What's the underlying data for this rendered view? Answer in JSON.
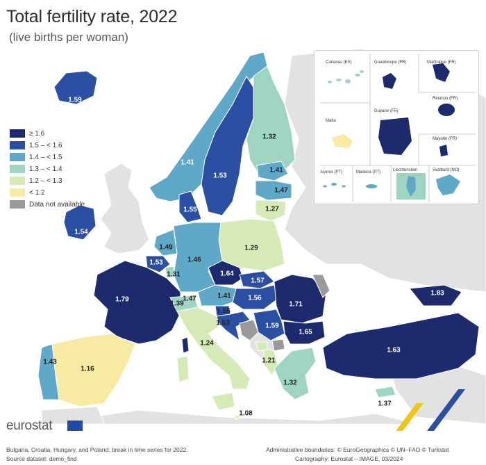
{
  "header": {
    "title": "Total fertility rate, 2022",
    "subtitle": "(live births per woman)"
  },
  "legend": {
    "items": [
      {
        "label": "≥ 1.6",
        "color": "#1d2a6e"
      },
      {
        "label": "1.5 – < 1.6",
        "color": "#2b4fa3"
      },
      {
        "label": "1.4 – < 1.5",
        "color": "#5fa8c7"
      },
      {
        "label": "1.3 – < 1.4",
        "color": "#9fd3c2"
      },
      {
        "label": "1.2 – < 1.3",
        "color": "#d6eab8"
      },
      {
        "label": "< 1.2",
        "color": "#f7eba3"
      },
      {
        "label": "Data not available",
        "color": "#9a9a9a"
      }
    ]
  },
  "countries": [
    {
      "name": "Iceland",
      "value": "1.59"
    },
    {
      "name": "Ireland",
      "value": "1.54"
    },
    {
      "name": "Norway",
      "value": "1.41"
    },
    {
      "name": "Sweden",
      "value": "1.53"
    },
    {
      "name": "Finland",
      "value": "1.32"
    },
    {
      "name": "Estonia",
      "value": "1.41"
    },
    {
      "name": "Latvia",
      "value": "1.47"
    },
    {
      "name": "Lithuania",
      "value": "1.27"
    },
    {
      "name": "Denmark",
      "value": "1.55"
    },
    {
      "name": "Netherlands",
      "value": "1.49"
    },
    {
      "name": "Belgium",
      "value": "1.53"
    },
    {
      "name": "Luxembourg",
      "value": "1.31"
    },
    {
      "name": "Germany",
      "value": "1.46"
    },
    {
      "name": "Poland",
      "value": "1.29"
    },
    {
      "name": "Czechia",
      "value": "1.64"
    },
    {
      "name": "Slovakia",
      "value": "1.57"
    },
    {
      "name": "Hungary",
      "value": "1.56"
    },
    {
      "name": "Austria",
      "value": "1.41"
    },
    {
      "name": "Switzerland",
      "value": "1.39"
    },
    {
      "name": "Liechtenstein",
      "value": "1.47"
    },
    {
      "name": "France",
      "value": "1.79"
    },
    {
      "name": "Slovenia",
      "value": "1.55"
    },
    {
      "name": "Croatia",
      "value": "1.53"
    },
    {
      "name": "Serbia",
      "value": "1.59"
    },
    {
      "name": "Romania",
      "value": "1.71"
    },
    {
      "name": "Bulgaria",
      "value": "1.65"
    },
    {
      "name": "Georgia",
      "value": "1.83"
    },
    {
      "name": "Turkey",
      "value": "1.63"
    },
    {
      "name": "Italy",
      "value": "1.24"
    },
    {
      "name": "Albania",
      "value": "1.21"
    },
    {
      "name": "Greece",
      "value": "1.32"
    },
    {
      "name": "Cyprus",
      "value": "1.37"
    },
    {
      "name": "Malta",
      "value": "1.08"
    },
    {
      "name": "Portugal",
      "value": "1.43"
    },
    {
      "name": "Spain",
      "value": "1.16"
    }
  ],
  "insets": {
    "canarias": "Canarias (ES)",
    "guadeloupe": "Guadeloupe (FR)",
    "martinique": "Martinique (FR)",
    "reunion": "Réunion (FR)",
    "malta": "Malta",
    "guyane": "Guyane (FR)",
    "mayotte": "Mayotte (FR)",
    "acores": "Açores (PT)",
    "madeira": "Madeira (PT)",
    "liechtenstein": "Liechtenstein",
    "svalbard": "Svalbard (NO)"
  },
  "footer": {
    "brand": "eurostat",
    "note1": "Bulgaria, Croatia, Hungary, and Poland: break in time series for 2022.",
    "note2": "Source dataset: demo_find",
    "credit1": "Administrative boundaries: © EuroGeographics © UN–FAO © Turkstat",
    "credit2": "Cartography: Eurostat – IMAGE, 03/2024"
  }
}
